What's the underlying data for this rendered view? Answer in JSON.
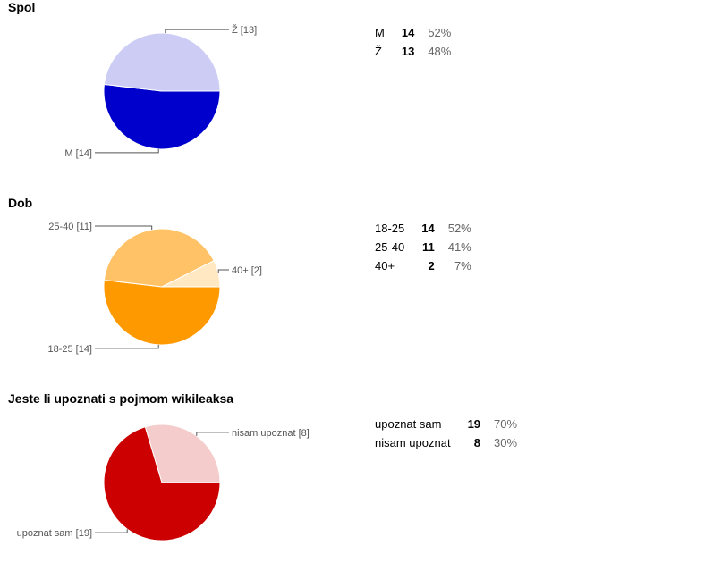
{
  "chart_data": [
    {
      "type": "pie",
      "title": "Spol",
      "colors": [
        "#0000cc",
        "#ccccf5"
      ],
      "slices": [
        {
          "label": "M",
          "value": 14,
          "percent": "52%",
          "callout": "M [14]"
        },
        {
          "label": "Ž",
          "value": 13,
          "percent": "48%",
          "callout": "Ž [13]"
        }
      ]
    },
    {
      "type": "pie",
      "title": "Dob",
      "colors": [
        "#ff9900",
        "#ffc266",
        "#ffe8c2"
      ],
      "slices": [
        {
          "label": "18-25",
          "value": 14,
          "percent": "52%",
          "callout": "18-25 [14]"
        },
        {
          "label": "25-40",
          "value": 11,
          "percent": "41%",
          "callout": "25-40 [11]"
        },
        {
          "label": "40+",
          "value": 2,
          "percent": "7%",
          "callout": "40+ [2]"
        }
      ]
    },
    {
      "type": "pie",
      "title": "Jeste li upoznati s pojmom wikileaksa",
      "colors": [
        "#cc0000",
        "#f5cccc"
      ],
      "slices": [
        {
          "label": "upoznat sam",
          "value": 19,
          "percent": "70%",
          "callout": "upoznat sam [19]"
        },
        {
          "label": "nisam upoznat",
          "value": 8,
          "percent": "30%",
          "callout": "nisam upoznat [8]"
        }
      ]
    }
  ]
}
